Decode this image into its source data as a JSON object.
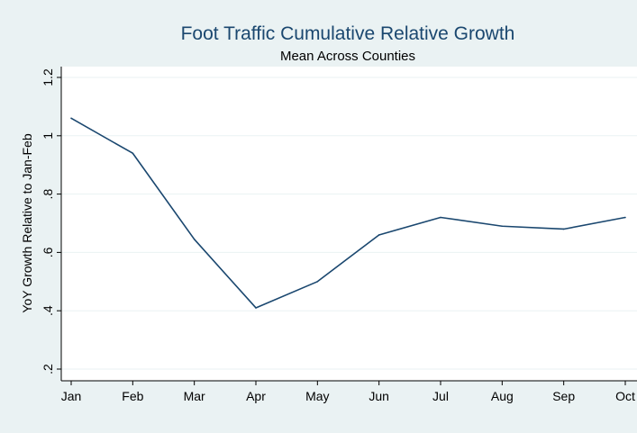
{
  "chart_data": {
    "type": "line",
    "title": "Foot Traffic Cumulative Relative Growth",
    "subtitle": "Mean Across Counties",
    "xlabel": "",
    "ylabel": "YoY Growth Relative to Jan-Feb",
    "categories": [
      "Jan",
      "Feb",
      "Mar",
      "Apr",
      "May",
      "Jun",
      "Jul",
      "Aug",
      "Sep",
      "Oct"
    ],
    "series": [
      {
        "values": [
          1.06,
          0.94,
          0.645,
          0.41,
          0.5,
          0.66,
          0.72,
          0.69,
          0.68,
          0.72
        ]
      }
    ],
    "ylim": [
      0.2,
      1.2
    ],
    "yticks": [
      0.2,
      0.4,
      0.6,
      0.8,
      1.0,
      1.2
    ],
    "ytick_labels": [
      ".2",
      ".4",
      ".6",
      ".8",
      "1",
      "1.2"
    ],
    "grid": true,
    "legend": "none",
    "colors": {
      "background": "#eaf2f3",
      "plot_background": "#ffffff",
      "line": "#1a476f",
      "grid": "#eaf2f3",
      "title": "#1a476f"
    }
  }
}
